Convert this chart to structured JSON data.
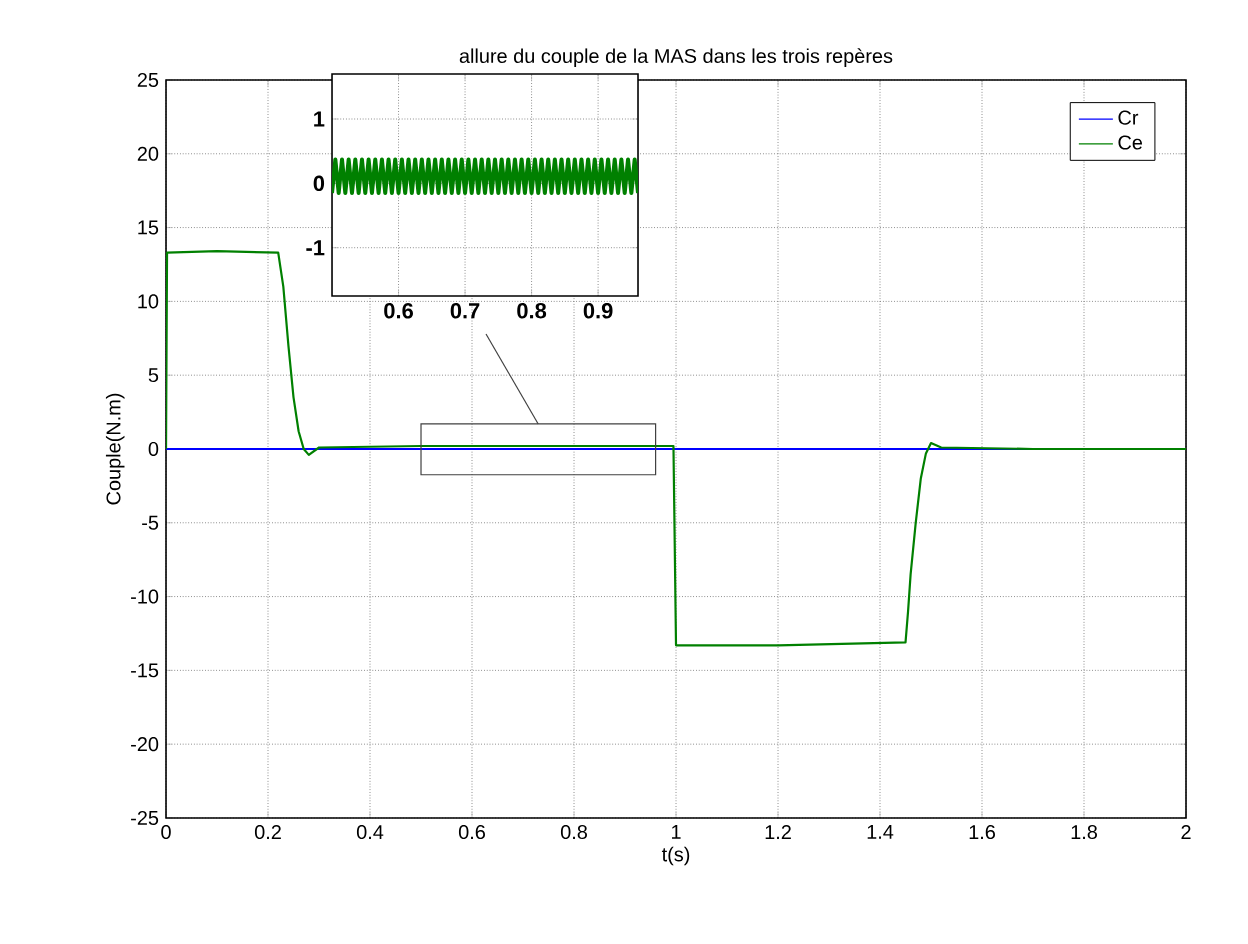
{
  "chart_data": [
    {
      "type": "line",
      "title": "allure du couple de la MAS dans les trois repères",
      "xlabel": "t(s)",
      "ylabel": "Couple(N.m)",
      "xlim": [
        0,
        2
      ],
      "ylim": [
        -25,
        25
      ],
      "xticks": [
        0,
        0.2,
        0.4,
        0.6,
        0.8,
        1,
        1.2,
        1.4,
        1.6,
        1.8,
        2
      ],
      "yticks": [
        -25,
        -20,
        -15,
        -10,
        -5,
        0,
        5,
        10,
        15,
        20,
        25
      ],
      "grid": true,
      "legend": "top right",
      "series": [
        {
          "name": "Cr",
          "color": "#0000ff",
          "x": [
            0,
            2
          ],
          "values": [
            0,
            0
          ]
        },
        {
          "name": "Ce",
          "color": "#008000",
          "x": [
            0,
            0.002,
            0.1,
            0.22,
            0.23,
            0.24,
            0.25,
            0.26,
            0.27,
            0.28,
            0.3,
            0.5,
            0.7,
            0.9,
            0.995,
            1.0,
            1.2,
            1.45,
            1.455,
            1.46,
            1.47,
            1.48,
            1.49,
            1.5,
            1.52,
            1.7,
            2
          ],
          "values": [
            0,
            13.3,
            13.4,
            13.3,
            11,
            7,
            3.5,
            1.2,
            0,
            -0.4,
            0.1,
            0.2,
            0.2,
            0.2,
            0.2,
            -13.3,
            -13.3,
            -13.1,
            -11,
            -8.5,
            -5,
            -2,
            -0.3,
            0.4,
            0.1,
            0,
            0
          ]
        }
      ]
    },
    {
      "type": "line",
      "xlim": [
        0.5,
        0.96
      ],
      "ylim": [
        -1.75,
        1.7
      ],
      "xticks": [
        0.6,
        0.7,
        0.8,
        0.9
      ],
      "yticks": [
        -1,
        0,
        1
      ],
      "grid": true,
      "series": [
        {
          "color": "#008000",
          "x": [
            0.5,
            0.505,
            0.51,
            0.515,
            0.52,
            0.525,
            0.53,
            0.535,
            0.54,
            0.545,
            0.55,
            0.555,
            0.56,
            0.565,
            0.57,
            0.575,
            0.58,
            0.585,
            0.59,
            0.595,
            0.6,
            0.605,
            0.61,
            0.615,
            0.62,
            0.625,
            0.63,
            0.635,
            0.64,
            0.645,
            0.65,
            0.655,
            0.66,
            0.665,
            0.67,
            0.675,
            0.68,
            0.685,
            0.69,
            0.695,
            0.7,
            0.705,
            0.71,
            0.715,
            0.72,
            0.725,
            0.73,
            0.735,
            0.74,
            0.745,
            0.75,
            0.755,
            0.76,
            0.765,
            0.77,
            0.775,
            0.78,
            0.785,
            0.79,
            0.795,
            0.8,
            0.805,
            0.81,
            0.815,
            0.82,
            0.825,
            0.83,
            0.835,
            0.84,
            0.845,
            0.85,
            0.855,
            0.86,
            0.865,
            0.87,
            0.875,
            0.88,
            0.885,
            0.89,
            0.895,
            0.9,
            0.905,
            0.91,
            0.915,
            0.92,
            0.925,
            0.93,
            0.935,
            0.94,
            0.945,
            0.95,
            0.955,
            0.96
          ],
          "values": [
            -0.15,
            0.37,
            -0.15,
            0.37,
            -0.15,
            0.37,
            -0.15,
            0.37,
            -0.15,
            0.37,
            -0.15,
            0.37,
            -0.15,
            0.37,
            -0.15,
            0.37,
            -0.15,
            0.37,
            -0.15,
            0.37,
            -0.15,
            0.37,
            -0.15,
            0.37,
            -0.15,
            0.37,
            -0.15,
            0.37,
            -0.15,
            0.37,
            -0.15,
            0.37,
            -0.15,
            0.37,
            -0.15,
            0.37,
            -0.15,
            0.37,
            -0.15,
            0.37,
            -0.15,
            0.37,
            -0.15,
            0.37,
            -0.15,
            0.37,
            -0.15,
            0.37,
            -0.15,
            0.37,
            -0.15,
            0.37,
            -0.15,
            0.37,
            -0.15,
            0.37,
            -0.15,
            0.37,
            -0.15,
            0.37,
            -0.15,
            0.37,
            -0.15,
            0.37,
            -0.15,
            0.37,
            -0.15,
            0.37,
            -0.15,
            0.37,
            -0.15,
            0.37,
            -0.15,
            0.37,
            -0.15,
            0.37,
            -0.15,
            0.37,
            -0.15,
            0.37,
            -0.15,
            0.37,
            -0.15,
            0.37,
            -0.15,
            0.37,
            -0.15,
            0.37,
            -0.15,
            0.37,
            -0.15,
            0.37,
            -0.15
          ]
        }
      ]
    }
  ]
}
